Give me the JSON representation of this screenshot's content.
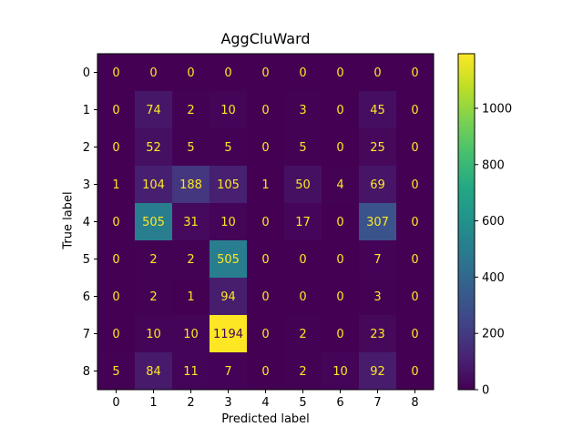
{
  "chart_data": {
    "type": "heatmap",
    "title": "AggCluWard",
    "xlabel": "Predicted label",
    "ylabel": "True label",
    "x_categories": [
      "0",
      "1",
      "2",
      "3",
      "4",
      "5",
      "6",
      "7",
      "8"
    ],
    "y_categories": [
      "0",
      "1",
      "2",
      "3",
      "4",
      "5",
      "6",
      "7",
      "8"
    ],
    "values": [
      [
        0,
        0,
        0,
        0,
        0,
        0,
        0,
        0,
        0
      ],
      [
        0,
        74,
        2,
        10,
        0,
        3,
        0,
        45,
        0
      ],
      [
        0,
        52,
        5,
        5,
        0,
        5,
        0,
        25,
        0
      ],
      [
        1,
        104,
        188,
        105,
        1,
        50,
        4,
        69,
        0
      ],
      [
        0,
        505,
        31,
        10,
        0,
        17,
        0,
        307,
        0
      ],
      [
        0,
        2,
        2,
        505,
        0,
        0,
        0,
        7,
        0
      ],
      [
        0,
        2,
        1,
        94,
        0,
        0,
        0,
        3,
        0
      ],
      [
        0,
        10,
        10,
        1194,
        0,
        2,
        0,
        23,
        0
      ],
      [
        5,
        84,
        11,
        7,
        0,
        2,
        10,
        92,
        0
      ]
    ],
    "colormap": "viridis",
    "vmin": 0,
    "vmax": 1194,
    "colorbar_ticks": [
      0,
      200,
      400,
      600,
      800,
      1000
    ]
  }
}
